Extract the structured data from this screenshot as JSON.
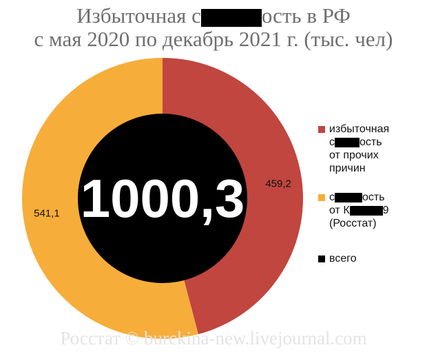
{
  "title_line1_a": "Избыточная с",
  "title_line1_b": "ость в РФ",
  "title_line2": "с мая 2020 по декабрь 2021 г. (тыс. чел)",
  "watermark": "Росстат © burckina-new.livejournal.com",
  "colors": {
    "red": "#c0463f",
    "orange": "#f7ad3a",
    "center": "#000000"
  },
  "chart_data": {
    "type": "pie",
    "center_label": "1000,3",
    "slices": [
      {
        "value": 459.2,
        "label": "459,2",
        "color": "#c0463f"
      },
      {
        "value": 541.1,
        "label": "541,1",
        "color": "#f7ad3a"
      }
    ],
    "legend": [
      {
        "color": "#c0463f",
        "lines": [
          "избыточная",
          "с",
          "от прочих",
          "причин"
        ]
      },
      {
        "color": "#f7ad3a",
        "lines": [
          "с",
          "от К",
          "(Росстат)"
        ]
      },
      {
        "color": "#000000",
        "lines": [
          "всего"
        ]
      }
    ],
    "legend_placement": "right"
  }
}
